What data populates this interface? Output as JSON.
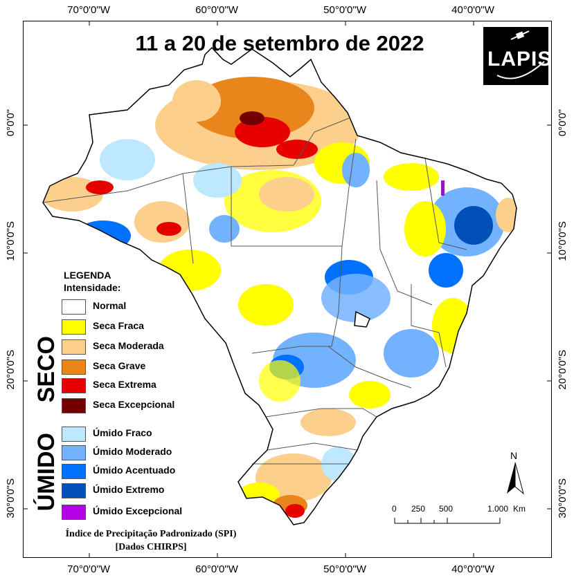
{
  "title": "11 a 20 de setembro de 2022",
  "logo_text": "LAPIS",
  "graticule": {
    "lon_labels": [
      "70°0'0\"W",
      "60°0'0\"W",
      "50°0'0\"W",
      "40°0'0\"W"
    ],
    "lat_labels": [
      "0°0'0\"",
      "10°0'0\"S",
      "20°0'0\"S",
      "30°0'0\"S"
    ]
  },
  "legend": {
    "heading": "LEGENDA",
    "subheading": "Intensidade:",
    "seco_label": "SECO",
    "umido_label": "ÚMIDO",
    "items": [
      {
        "label": "Normal",
        "color": "#ffffff"
      },
      {
        "label": "Seca Fraca",
        "color": "#ffff00"
      },
      {
        "label": "Seca Moderada",
        "color": "#fcd08c"
      },
      {
        "label": "Seca Grave",
        "color": "#e8861c"
      },
      {
        "label": "Seca Extrema",
        "color": "#e60000"
      },
      {
        "label": "Seca Excepcional",
        "color": "#730000"
      },
      {
        "label": "Úmido Fraco",
        "color": "#bee8ff"
      },
      {
        "label": "Úmido Moderado",
        "color": "#73b2ff"
      },
      {
        "label": "Úmido Acentuado",
        "color": "#0070ff"
      },
      {
        "label": "Úmido Extremo",
        "color": "#0050b8"
      },
      {
        "label": "Úmido Excepcional",
        "color": "#b300e6"
      }
    ]
  },
  "footer": {
    "line1": "Índice de Precipitação Padronizado (SPI)",
    "line2": "[Dados CHIRPS]"
  },
  "scale_bar": {
    "ticks": [
      "0",
      "250",
      "500",
      "1.000"
    ],
    "unit": "Km"
  },
  "north_label": "N"
}
